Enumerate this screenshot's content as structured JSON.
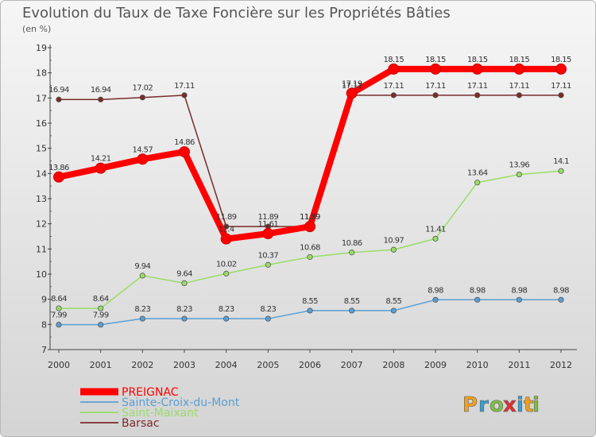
{
  "chart_data": {
    "type": "line",
    "title": "Evolution du Taux de Taxe Foncière sur les Propriétés Bâties",
    "subtitle": "(en %)",
    "xlabel": "",
    "ylabel": "",
    "ylim": [
      7,
      19
    ],
    "yticks": [
      "7",
      "8",
      "9",
      "10",
      "11",
      "12",
      "13",
      "14",
      "15",
      "16",
      "17",
      "18",
      "19"
    ],
    "categories": [
      "2000",
      "2001",
      "2002",
      "2003",
      "2004",
      "2005",
      "2006",
      "2007",
      "2008",
      "2009",
      "2010",
      "2011",
      "2012"
    ],
    "legend_position": "bottom-left",
    "grid": false,
    "series": [
      {
        "name": "PREIGNAC",
        "color": "#ff0000",
        "values": [
          13.86,
          14.21,
          14.57,
          14.86,
          11.4,
          11.61,
          11.89,
          17.19,
          18.15,
          18.15,
          18.15,
          18.15,
          18.15
        ],
        "labels": [
          "13.86",
          "14.21",
          "14.57",
          "14.86",
          "11.4",
          "11.61",
          "11.89",
          "17.19",
          "18.15",
          "18.15",
          "18.15",
          "18.15",
          "18.15"
        ]
      },
      {
        "name": "Sainte-Croix-du-Mont",
        "color": "#5a9fd4",
        "values": [
          7.99,
          7.99,
          8.23,
          8.23,
          8.23,
          8.23,
          8.55,
          8.55,
          8.55,
          8.98,
          8.98,
          8.98,
          8.98
        ],
        "labels": [
          "7.99",
          "7.99",
          "8.23",
          "8.23",
          "8.23",
          "8.23",
          "8.55",
          "8.55",
          "8.55",
          "8.98",
          "8.98",
          "8.98",
          "8.98"
        ]
      },
      {
        "name": "Saint-Maixant",
        "color": "#99dd66",
        "values": [
          8.64,
          8.64,
          9.94,
          9.64,
          10.02,
          10.37,
          10.68,
          10.86,
          10.97,
          11.41,
          13.64,
          13.96,
          14.1
        ],
        "labels": [
          "8.64",
          "8.64",
          "9.94",
          "9.64",
          "10.02",
          "10.37",
          "10.68",
          "10.86",
          "10.97",
          "11.41",
          "13.64",
          "13.96",
          "14.1"
        ]
      },
      {
        "name": "Barsac",
        "color": "#7a2a2a",
        "values": [
          16.94,
          16.94,
          17.02,
          17.11,
          11.89,
          11.89,
          11.89,
          17.11,
          17.11,
          17.11,
          17.11,
          17.11,
          17.11
        ],
        "labels": [
          "16.94",
          "16.94",
          "17.02",
          "17.11",
          "11.89",
          "11.89",
          "11.89",
          "17.11",
          "17.11",
          "17.11",
          "17.11",
          "17.11",
          "17.11"
        ]
      }
    ]
  },
  "brand": {
    "letters": [
      "P",
      "r",
      "o",
      "x",
      "i",
      "t",
      "i"
    ],
    "colors": [
      "#f0a020",
      "#3aa0d0",
      "#80c040",
      "#e03030",
      "#3aa0d0",
      "#f0a020",
      "#80c040"
    ]
  }
}
